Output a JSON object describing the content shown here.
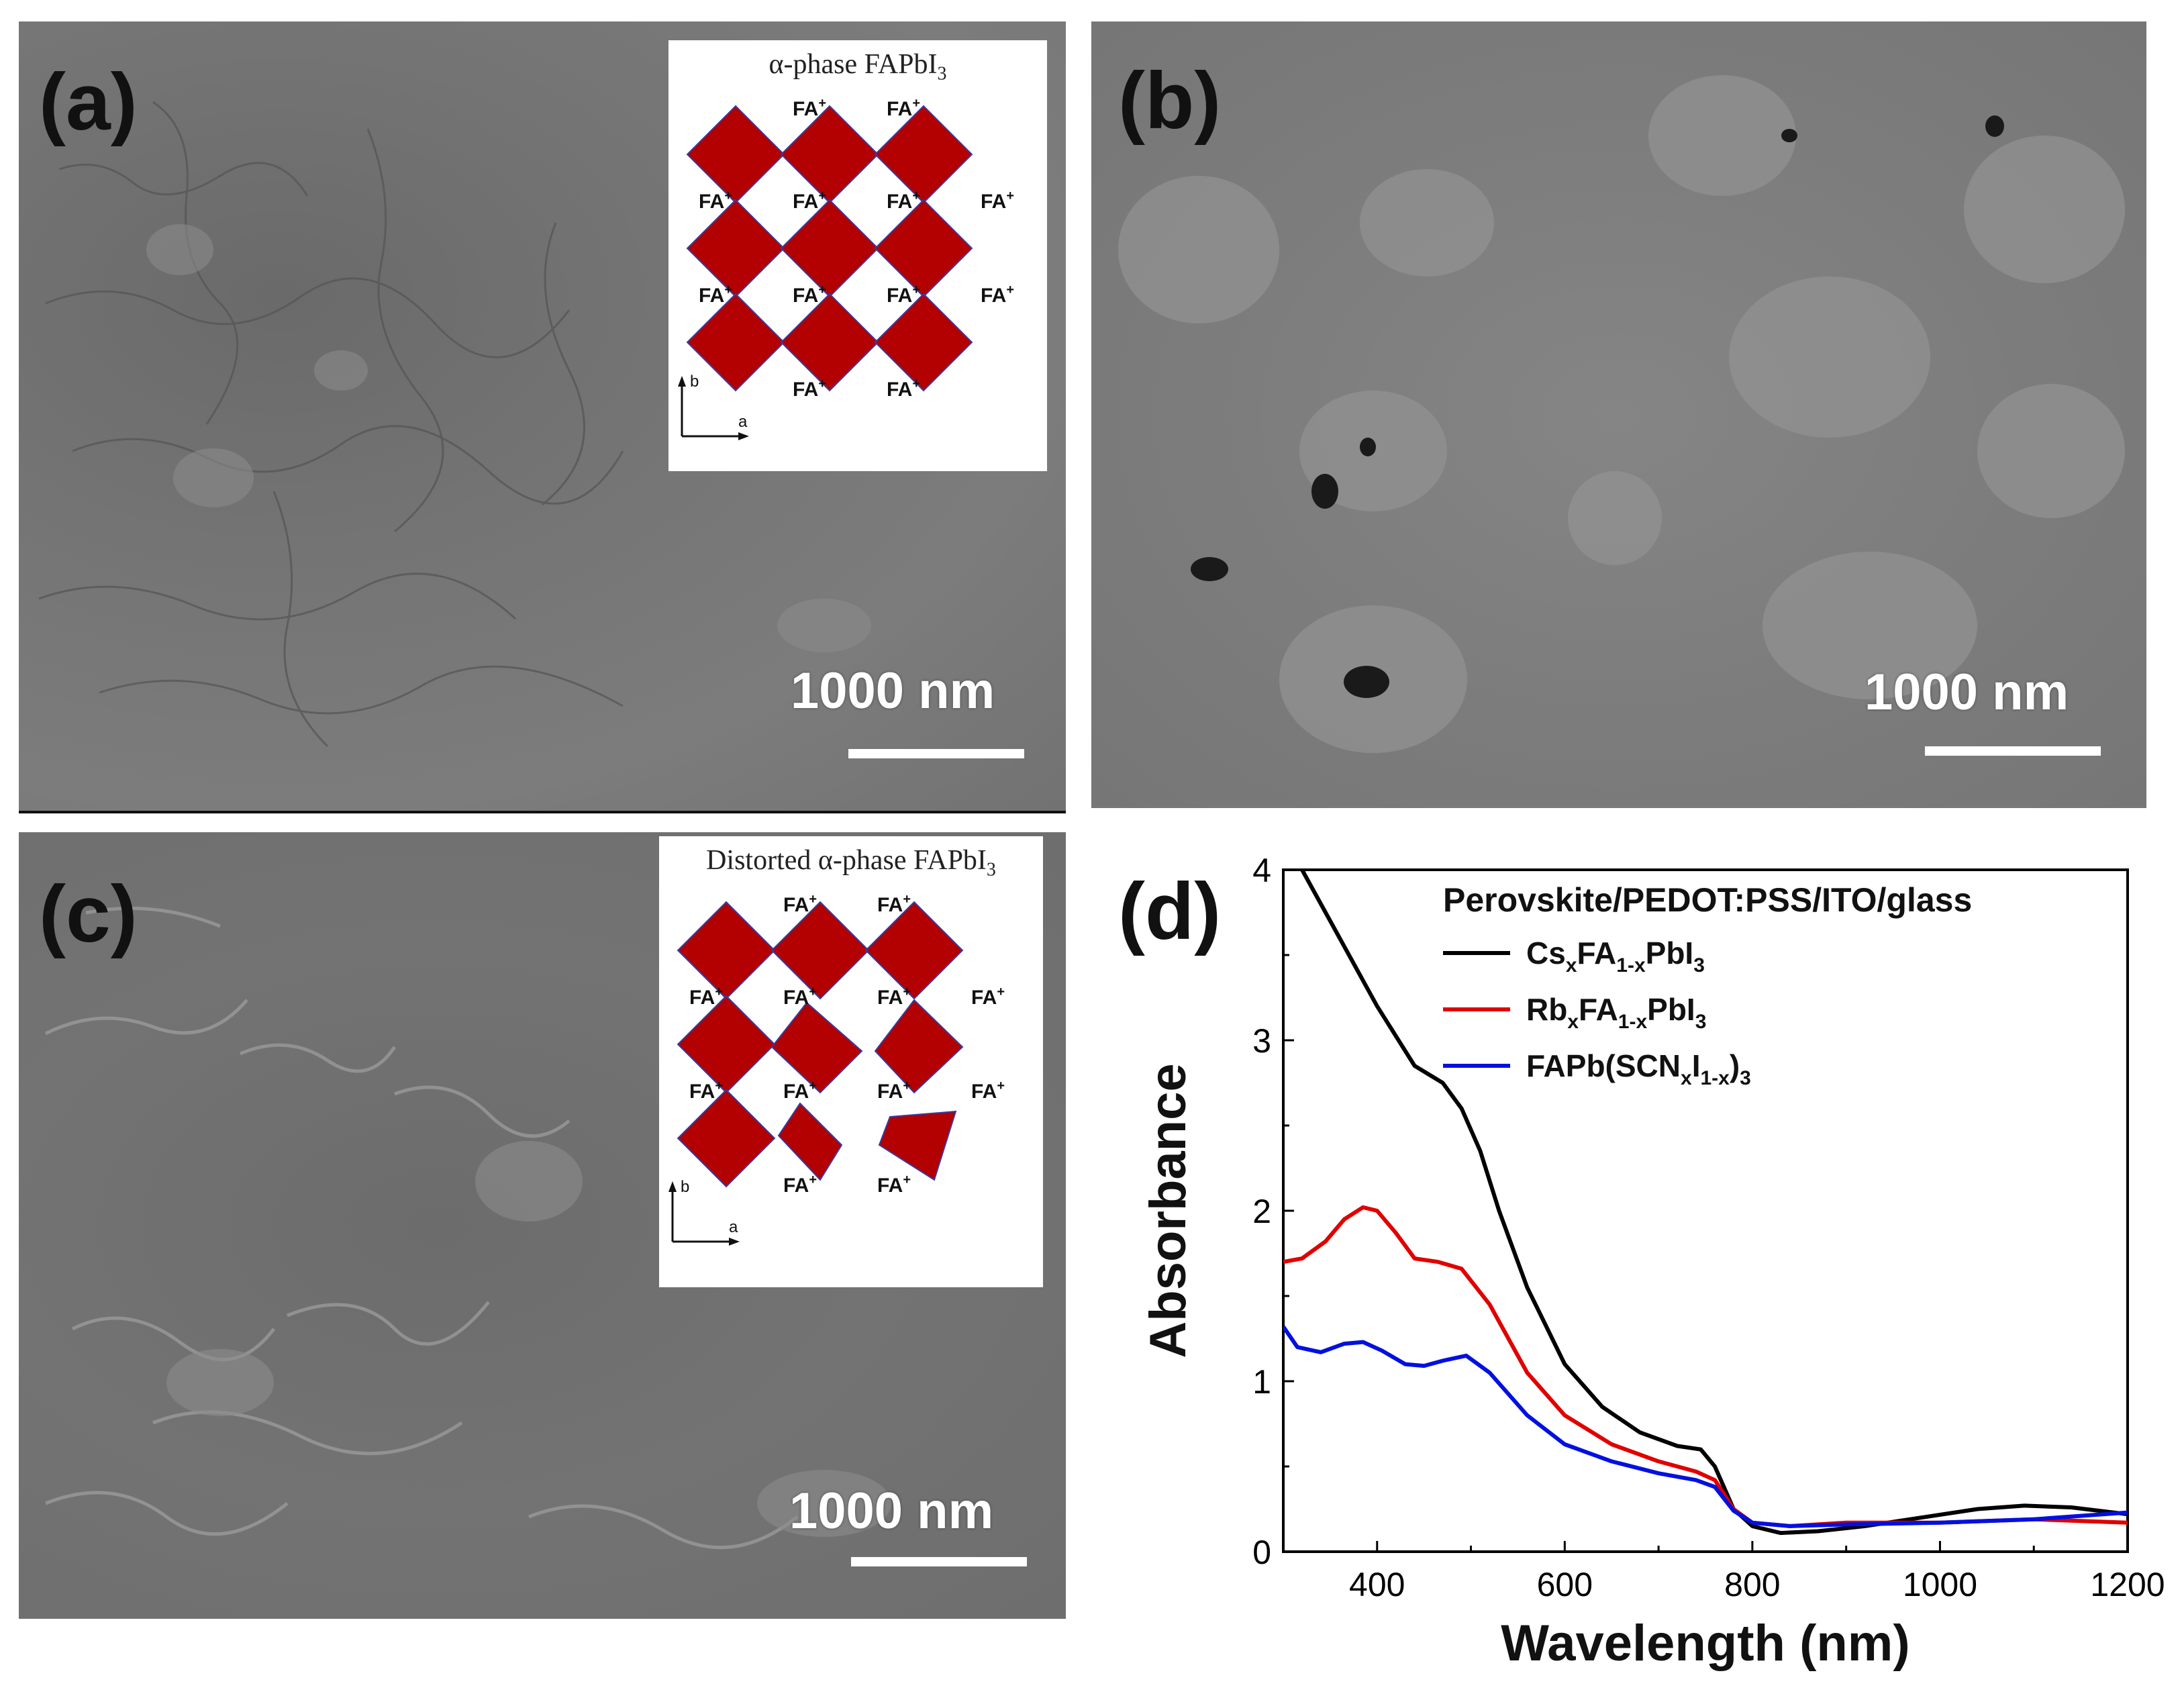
{
  "panels": {
    "a": {
      "label": "(a)",
      "scale_bar": "1000 nm",
      "inset_title_prefix": "α-phase FAPbI",
      "inset_title_sub": "3",
      "ion_label": "FA",
      "ion_charge": "+",
      "axis_b": "b",
      "axis_a": "a"
    },
    "b": {
      "label": "(b)",
      "scale_bar": "1000 nm"
    },
    "c": {
      "label": "(c)",
      "scale_bar": "1000 nm",
      "inset_title_prefix": "Distorted α-phase FAPbI",
      "inset_title_sub": "3",
      "ion_label": "FA",
      "ion_charge": "+",
      "axis_b": "b",
      "axis_a": "a"
    },
    "d": {
      "label": "(d)"
    }
  },
  "colors": {
    "sem_gray": "#6e6e6e",
    "octahedron": "#b30000",
    "black": "#000000",
    "red": "#e00000",
    "blue": "#0010e0"
  },
  "chart_data": {
    "type": "line",
    "legend_title": "Perovskite/PEDOT:PSS/ITO/glass",
    "xlabel": "Wavelength (nm)",
    "ylabel": "Absorbance",
    "xlim": [
      300,
      1200
    ],
    "ylim": [
      0,
      4
    ],
    "xticks": [
      400,
      600,
      800,
      1000,
      1200
    ],
    "yticks": [
      0,
      1,
      2,
      3,
      4
    ],
    "legend_placement": "top-right",
    "series": [
      {
        "name": "CsxFA1-xPbI3",
        "legend_parts": [
          [
            "Cs",
            ""
          ],
          [
            "x",
            "sub"
          ],
          [
            "FA",
            ""
          ],
          [
            "1-x",
            "sub"
          ],
          [
            "PbI",
            ""
          ],
          [
            "3",
            "sub"
          ]
        ],
        "color": "#000000",
        "points": [
          [
            320,
            4.0
          ],
          [
            360,
            3.6
          ],
          [
            400,
            3.2
          ],
          [
            440,
            2.85
          ],
          [
            470,
            2.75
          ],
          [
            490,
            2.6
          ],
          [
            510,
            2.35
          ],
          [
            530,
            2.0
          ],
          [
            560,
            1.55
          ],
          [
            600,
            1.1
          ],
          [
            640,
            0.85
          ],
          [
            680,
            0.7
          ],
          [
            720,
            0.62
          ],
          [
            745,
            0.6
          ],
          [
            760,
            0.5
          ],
          [
            780,
            0.25
          ],
          [
            800,
            0.15
          ],
          [
            830,
            0.11
          ],
          [
            870,
            0.12
          ],
          [
            920,
            0.15
          ],
          [
            980,
            0.2
          ],
          [
            1040,
            0.25
          ],
          [
            1090,
            0.27
          ],
          [
            1140,
            0.26
          ],
          [
            1200,
            0.22
          ]
        ]
      },
      {
        "name": "RbxFA1-xPbI3",
        "legend_parts": [
          [
            "Rb",
            ""
          ],
          [
            "x",
            "sub"
          ],
          [
            "FA",
            ""
          ],
          [
            "1-x",
            "sub"
          ],
          [
            "PbI",
            ""
          ],
          [
            "3",
            "sub"
          ]
        ],
        "color": "#e00000",
        "points": [
          [
            300,
            1.7
          ],
          [
            320,
            1.72
          ],
          [
            345,
            1.82
          ],
          [
            365,
            1.95
          ],
          [
            385,
            2.02
          ],
          [
            400,
            2.0
          ],
          [
            420,
            1.87
          ],
          [
            440,
            1.72
          ],
          [
            465,
            1.7
          ],
          [
            490,
            1.66
          ],
          [
            520,
            1.45
          ],
          [
            560,
            1.05
          ],
          [
            600,
            0.8
          ],
          [
            650,
            0.63
          ],
          [
            700,
            0.53
          ],
          [
            740,
            0.47
          ],
          [
            760,
            0.42
          ],
          [
            780,
            0.25
          ],
          [
            800,
            0.17
          ],
          [
            840,
            0.15
          ],
          [
            900,
            0.17
          ],
          [
            1000,
            0.17
          ],
          [
            1100,
            0.19
          ],
          [
            1200,
            0.17
          ]
        ]
      },
      {
        "name": "FAPb(SCNxI1-x)3",
        "legend_parts": [
          [
            "FAPb(SCN",
            ""
          ],
          [
            "x",
            "sub"
          ],
          [
            "I",
            ""
          ],
          [
            "1-x",
            "sub"
          ],
          [
            ")",
            ""
          ],
          [
            "3",
            "sub"
          ]
        ],
        "color": "#0010e0",
        "points": [
          [
            300,
            1.32
          ],
          [
            315,
            1.2
          ],
          [
            340,
            1.17
          ],
          [
            365,
            1.22
          ],
          [
            385,
            1.23
          ],
          [
            405,
            1.18
          ],
          [
            430,
            1.1
          ],
          [
            450,
            1.09
          ],
          [
            470,
            1.12
          ],
          [
            495,
            1.15
          ],
          [
            520,
            1.05
          ],
          [
            560,
            0.8
          ],
          [
            600,
            0.63
          ],
          [
            650,
            0.53
          ],
          [
            700,
            0.46
          ],
          [
            740,
            0.42
          ],
          [
            760,
            0.38
          ],
          [
            780,
            0.24
          ],
          [
            800,
            0.17
          ],
          [
            840,
            0.15
          ],
          [
            900,
            0.16
          ],
          [
            1000,
            0.17
          ],
          [
            1100,
            0.19
          ],
          [
            1200,
            0.23
          ]
        ]
      }
    ]
  }
}
